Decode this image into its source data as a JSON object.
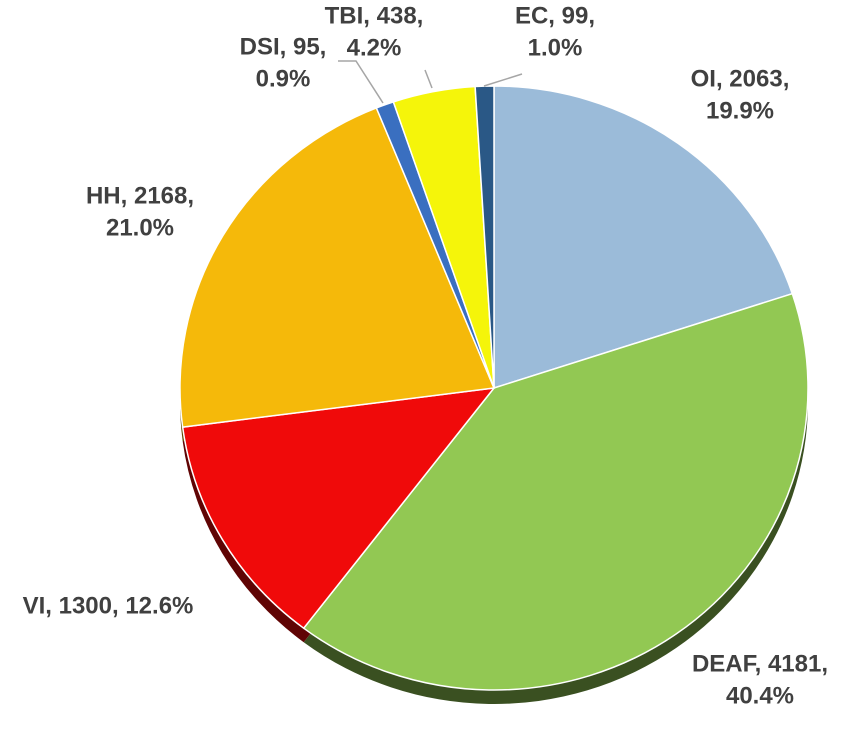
{
  "chart_data": {
    "type": "pie",
    "categories": [
      "OI",
      "DEAF",
      "VI",
      "HH",
      "DSI",
      "TBI",
      "EC"
    ],
    "values": [
      2063,
      4181,
      1300,
      2168,
      95,
      438,
      99
    ],
    "value_labels": [
      [
        "OI, 2063,",
        "19.9%"
      ],
      [
        "DEAF, 4181,",
        "40.4%"
      ],
      [
        "VI, 1300, 12.6%"
      ],
      [
        "HH, 2168,",
        "21.0%"
      ],
      [
        "DSI, 95,",
        "0.9%"
      ],
      [
        "TBI, 438,",
        "4.2%"
      ],
      [
        "EC, 99,",
        "1.0%"
      ]
    ],
    "colors": [
      "#9bbbd9",
      "#92c853",
      "#f00a0a",
      "#f5b90a",
      "#3a6fc0",
      "#f5f50a",
      "#2a5886"
    ]
  }
}
